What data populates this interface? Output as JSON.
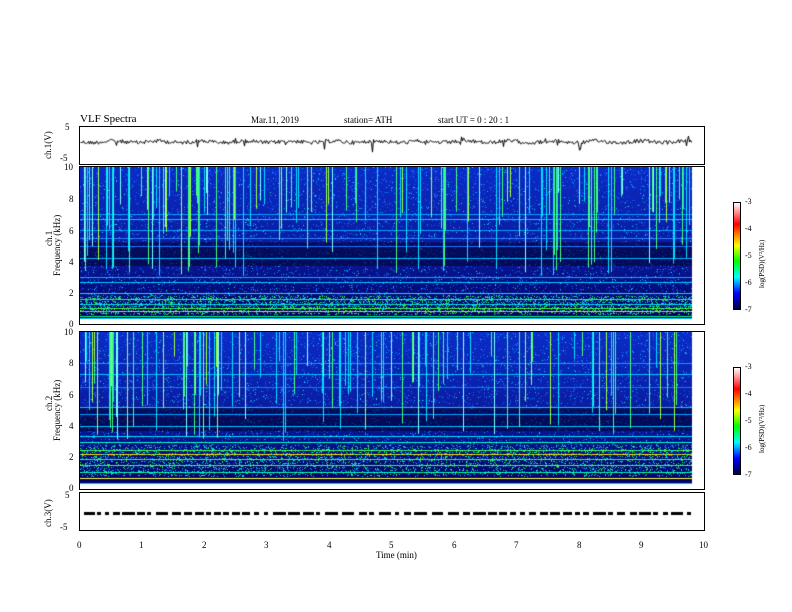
{
  "header": {
    "title": "VLF Spectra",
    "date": "Mar.11, 2019",
    "station": "station= ATH",
    "start": "start UT =  0 : 20 : 1"
  },
  "chart_data": [
    {
      "type": "line",
      "name": "ch1-waveform",
      "ylabel": "ch.1(V)",
      "ylim": [
        -5,
        5
      ],
      "yticks": [
        "5",
        "-5"
      ],
      "xlim": [
        0,
        10
      ],
      "data_extent_min": 9.8
    },
    {
      "type": "heatmap",
      "name": "ch1-spectrogram",
      "ylabel_top": "ch.1",
      "ylabel": "Frequency (kHz)",
      "ylim": [
        0,
        10
      ],
      "yticks": [
        "10",
        "8",
        "6",
        "4",
        "2",
        "0"
      ],
      "colorbar": {
        "label": "log(PSD)(V²/Hz)",
        "range": [
          -7,
          -3
        ],
        "ticks": [
          "-3",
          "-4",
          "-5",
          "-6",
          "-7"
        ]
      }
    },
    {
      "type": "heatmap",
      "name": "ch2-spectrogram",
      "ylabel_top": "ch.2",
      "ylabel": "Frequency (kHz)",
      "ylim": [
        0,
        10
      ],
      "yticks": [
        "10",
        "8",
        "6",
        "4",
        "2",
        "0"
      ],
      "colorbar": {
        "label": "log(PSD)(V²/Hz)",
        "range": [
          -7,
          -3
        ],
        "ticks": [
          "-3",
          "-4",
          "-5",
          "-6",
          "-7"
        ]
      }
    },
    {
      "type": "line",
      "name": "ch3-signal",
      "ylabel": "ch.3(V)",
      "ylim": [
        -5,
        5
      ],
      "yticks": [
        "5",
        "-5"
      ],
      "xlim": [
        0,
        10
      ],
      "xlabel": "Time (min)",
      "xticks": [
        "0",
        "1",
        "2",
        "3",
        "4",
        "5",
        "6",
        "7",
        "8",
        "9",
        "10"
      ]
    }
  ]
}
